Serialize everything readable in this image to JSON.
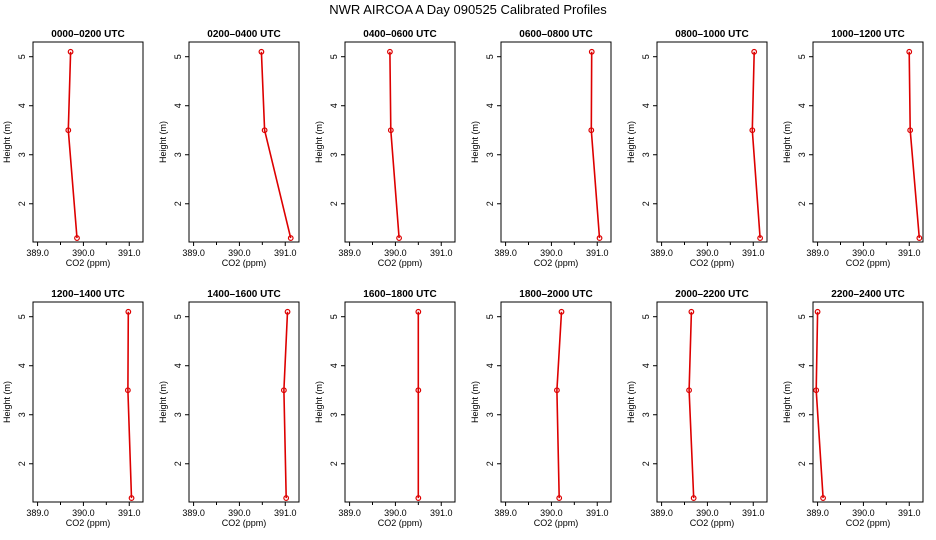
{
  "title": "NWR AIRCOA A  Day 090525  Calibrated Profiles",
  "colors": {
    "profile": "#dd0000",
    "axis": "#000000"
  },
  "chart_data": [
    {
      "type": "line",
      "title": "0000–0200 UTC",
      "xlabel": "CO2 (ppm)",
      "ylabel": "Height (m)",
      "xlim": [
        388.9,
        391.3
      ],
      "ylim": [
        1.22,
        5.3
      ],
      "xticks": [
        "389.0",
        "390.0",
        "391.0"
      ],
      "yticks": [
        "2",
        "3",
        "4",
        "5"
      ],
      "x": [
        389.72,
        389.67,
        389.86
      ],
      "y": [
        5.1,
        3.5,
        1.3
      ]
    },
    {
      "type": "line",
      "title": "0200–0400 UTC",
      "xlabel": "CO2 (ppm)",
      "ylabel": "Height (m)",
      "xlim": [
        388.9,
        391.3
      ],
      "ylim": [
        1.22,
        5.3
      ],
      "xticks": [
        "389.0",
        "390.0",
        "391.0"
      ],
      "yticks": [
        "2",
        "3",
        "4",
        "5"
      ],
      "x": [
        390.48,
        390.55,
        391.12
      ],
      "y": [
        5.1,
        3.5,
        1.3
      ]
    },
    {
      "type": "line",
      "title": "0400–0600 UTC",
      "xlabel": "CO2 (ppm)",
      "ylabel": "Height (m)",
      "xlim": [
        388.9,
        391.3
      ],
      "ylim": [
        1.22,
        5.3
      ],
      "xticks": [
        "389.0",
        "390.0",
        "391.0"
      ],
      "yticks": [
        "2",
        "3",
        "4",
        "5"
      ],
      "x": [
        389.88,
        389.9,
        390.08
      ],
      "y": [
        5.1,
        3.5,
        1.3
      ]
    },
    {
      "type": "line",
      "title": "0600–0800 UTC",
      "xlabel": "CO2 (ppm)",
      "ylabel": "Height (m)",
      "xlim": [
        388.9,
        391.3
      ],
      "ylim": [
        1.22,
        5.3
      ],
      "xticks": [
        "389.0",
        "390.0",
        "391.0"
      ],
      "yticks": [
        "2",
        "3",
        "4",
        "5"
      ],
      "x": [
        390.88,
        390.87,
        391.05
      ],
      "y": [
        5.1,
        3.5,
        1.3
      ]
    },
    {
      "type": "line",
      "title": "0800–1000 UTC",
      "xlabel": "CO2 (ppm)",
      "ylabel": "Height (m)",
      "xlim": [
        388.9,
        391.3
      ],
      "ylim": [
        1.22,
        5.3
      ],
      "xticks": [
        "389.0",
        "390.0",
        "391.0"
      ],
      "yticks": [
        "2",
        "3",
        "4",
        "5"
      ],
      "x": [
        391.02,
        390.98,
        391.15
      ],
      "y": [
        5.1,
        3.5,
        1.3
      ]
    },
    {
      "type": "line",
      "title": "1000–1200 UTC",
      "xlabel": "CO2 (ppm)",
      "ylabel": "Height (m)",
      "xlim": [
        388.9,
        391.3
      ],
      "ylim": [
        1.22,
        5.3
      ],
      "xticks": [
        "389.0",
        "390.0",
        "391.0"
      ],
      "yticks": [
        "2",
        "3",
        "4",
        "5"
      ],
      "x": [
        391.0,
        391.02,
        391.22
      ],
      "y": [
        5.1,
        3.5,
        1.3
      ]
    },
    {
      "type": "line",
      "title": "1200–1400 UTC",
      "xlabel": "CO2 (ppm)",
      "ylabel": "Height (m)",
      "xlim": [
        388.9,
        391.3
      ],
      "ylim": [
        1.22,
        5.3
      ],
      "xticks": [
        "389.0",
        "390.0",
        "391.0"
      ],
      "yticks": [
        "2",
        "3",
        "4",
        "5"
      ],
      "x": [
        390.98,
        390.97,
        391.05
      ],
      "y": [
        5.1,
        3.5,
        1.3
      ]
    },
    {
      "type": "line",
      "title": "1400–1600 UTC",
      "xlabel": "CO2 (ppm)",
      "ylabel": "Height (m)",
      "xlim": [
        388.9,
        391.3
      ],
      "ylim": [
        1.22,
        5.3
      ],
      "xticks": [
        "389.0",
        "390.0",
        "391.0"
      ],
      "yticks": [
        "2",
        "3",
        "4",
        "5"
      ],
      "x": [
        391.05,
        390.97,
        391.02
      ],
      "y": [
        5.1,
        3.5,
        1.3
      ]
    },
    {
      "type": "line",
      "title": "1600–1800 UTC",
      "xlabel": "CO2 (ppm)",
      "ylabel": "Height (m)",
      "xlim": [
        388.9,
        391.3
      ],
      "ylim": [
        1.22,
        5.3
      ],
      "xticks": [
        "389.0",
        "390.0",
        "391.0"
      ],
      "yticks": [
        "2",
        "3",
        "4",
        "5"
      ],
      "x": [
        390.5,
        390.5,
        390.5
      ],
      "y": [
        5.1,
        3.5,
        1.3
      ]
    },
    {
      "type": "line",
      "title": "1800–2000 UTC",
      "xlabel": "CO2 (ppm)",
      "ylabel": "Height (m)",
      "xlim": [
        388.9,
        391.3
      ],
      "ylim": [
        1.22,
        5.3
      ],
      "xticks": [
        "389.0",
        "390.0",
        "391.0"
      ],
      "yticks": [
        "2",
        "3",
        "4",
        "5"
      ],
      "x": [
        390.22,
        390.12,
        390.17
      ],
      "y": [
        5.1,
        3.5,
        1.3
      ]
    },
    {
      "type": "line",
      "title": "2000–2200 UTC",
      "xlabel": "CO2 (ppm)",
      "ylabel": "Height (m)",
      "xlim": [
        388.9,
        391.3
      ],
      "ylim": [
        1.22,
        5.3
      ],
      "xticks": [
        "389.0",
        "390.0",
        "391.0"
      ],
      "yticks": [
        "2",
        "3",
        "4",
        "5"
      ],
      "x": [
        389.65,
        389.6,
        389.7
      ],
      "y": [
        5.1,
        3.5,
        1.3
      ]
    },
    {
      "type": "line",
      "title": "2200–2400 UTC",
      "xlabel": "CO2 (ppm)",
      "ylabel": "Height (m)",
      "xlim": [
        388.9,
        391.3
      ],
      "ylim": [
        1.22,
        5.3
      ],
      "xticks": [
        "389.0",
        "390.0",
        "391.0"
      ],
      "yticks": [
        "2",
        "3",
        "4",
        "5"
      ],
      "x": [
        389.0,
        388.97,
        389.12
      ],
      "y": [
        5.1,
        3.5,
        1.3
      ]
    }
  ]
}
